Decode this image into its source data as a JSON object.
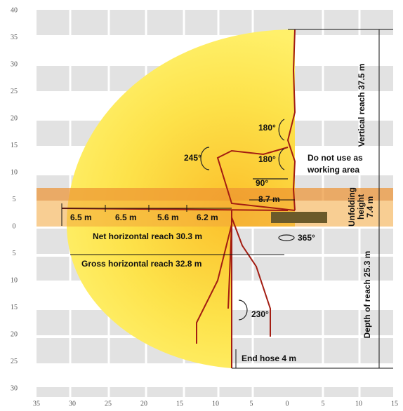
{
  "axes": {
    "y_labels": [
      "40",
      "35",
      "30",
      "25",
      "20",
      "15",
      "10",
      "5",
      "0",
      "5",
      "10",
      "15",
      "20",
      "25",
      "30"
    ],
    "x_labels": [
      "35",
      "30",
      "25",
      "20",
      "15",
      "10",
      "5",
      "0",
      "5",
      "10",
      "15"
    ]
  },
  "angles": {
    "upper_180": "180°",
    "lower_180": "180°",
    "left_245": "245°",
    "right_90": "90°",
    "slew_365": "365°",
    "lower_230": "230°"
  },
  "notes": {
    "no_use_1": "Do not use as",
    "no_use_2": "working area"
  },
  "dimensions": {
    "upper_section": "8.7 m",
    "sections": [
      "6.5 m",
      "6.5 m",
      "5.6 m",
      "6.2 m"
    ],
    "net_reach": "Net horizontal reach 30.3 m",
    "gross_reach": "Gross horizontal reach 32.8 m",
    "end_hose": "End hose 4 m",
    "vertical_reach": "Vertical reach 37.5 m",
    "unfolding": [
      "Unfolding",
      "height",
      "7.4 m"
    ],
    "depth": "Depth of reach 25.3 m"
  }
}
